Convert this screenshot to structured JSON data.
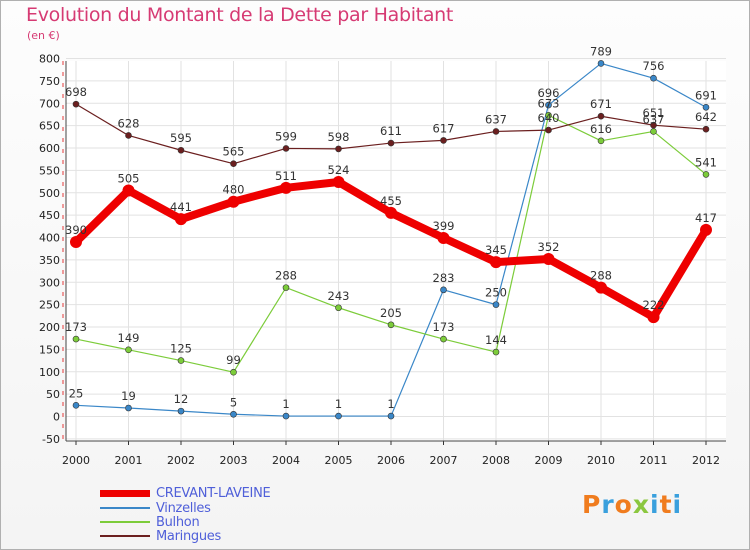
{
  "title": "Evolution du Montant de la Dette par Habitant",
  "unit_label": "(en €)",
  "logo": {
    "text": "Proxiti",
    "letter_colors": [
      "#f07c1e",
      "#3aa0dd",
      "#f07c1e",
      "#8bc73f",
      "#3aa0dd",
      "#f07c1e",
      "#3aa0dd"
    ]
  },
  "chart_data": {
    "type": "line",
    "title": "Evolution du Montant de la Dette par Habitant",
    "ylabel": "(en €)",
    "xlabel": "",
    "x": [
      "2000",
      "2001",
      "2002",
      "2003",
      "2004",
      "2005",
      "2006",
      "2007",
      "2008",
      "2009",
      "2010",
      "2011",
      "2012"
    ],
    "yticks": [
      "-50",
      "0",
      "50",
      "100",
      "150",
      "200",
      "250",
      "300",
      "350",
      "400",
      "450",
      "500",
      "550",
      "600",
      "650",
      "700",
      "750",
      "800"
    ],
    "ylim": [
      -50,
      800
    ],
    "grid": true,
    "legend_position": "bottom-left",
    "series": [
      {
        "name": "CREVANT-LAVEINE",
        "color": "#ee0000",
        "values": [
          390,
          505,
          441,
          480,
          511,
          524,
          455,
          399,
          345,
          352,
          288,
          222,
          417
        ],
        "labels": [
          "390",
          "505",
          "441",
          "480",
          "511",
          "524",
          "455",
          "399",
          "345",
          "352",
          "288",
          "222",
          "417"
        ]
      },
      {
        "name": "Vinzelles",
        "color": "#3a87c8",
        "values": [
          25,
          19,
          12,
          5,
          1,
          1,
          1,
          283,
          250,
          696,
          789,
          756,
          691
        ],
        "labels": [
          "25",
          "19",
          "12",
          "5",
          "1",
          "1",
          "1",
          "283",
          "250",
          "696",
          "789",
          "756",
          "691"
        ]
      },
      {
        "name": "Bulhon",
        "color": "#7ccc3a",
        "values": [
          173,
          149,
          125,
          99,
          288,
          243,
          205,
          173,
          144,
          673,
          616,
          637,
          541
        ],
        "labels": [
          "173",
          "149",
          "125",
          "99",
          "288",
          "243",
          "205",
          "173",
          "144",
          "673",
          "616",
          "637",
          "541"
        ]
      },
      {
        "name": "Maringues",
        "color": "#6b1f1f",
        "values": [
          698,
          628,
          595,
          565,
          599,
          598,
          611,
          617,
          637,
          640,
          671,
          651,
          642
        ],
        "labels": [
          "698",
          "628",
          "595",
          "565",
          "599",
          "598",
          "611",
          "617",
          "637",
          "640",
          "671",
          "651",
          "642"
        ]
      }
    ]
  }
}
